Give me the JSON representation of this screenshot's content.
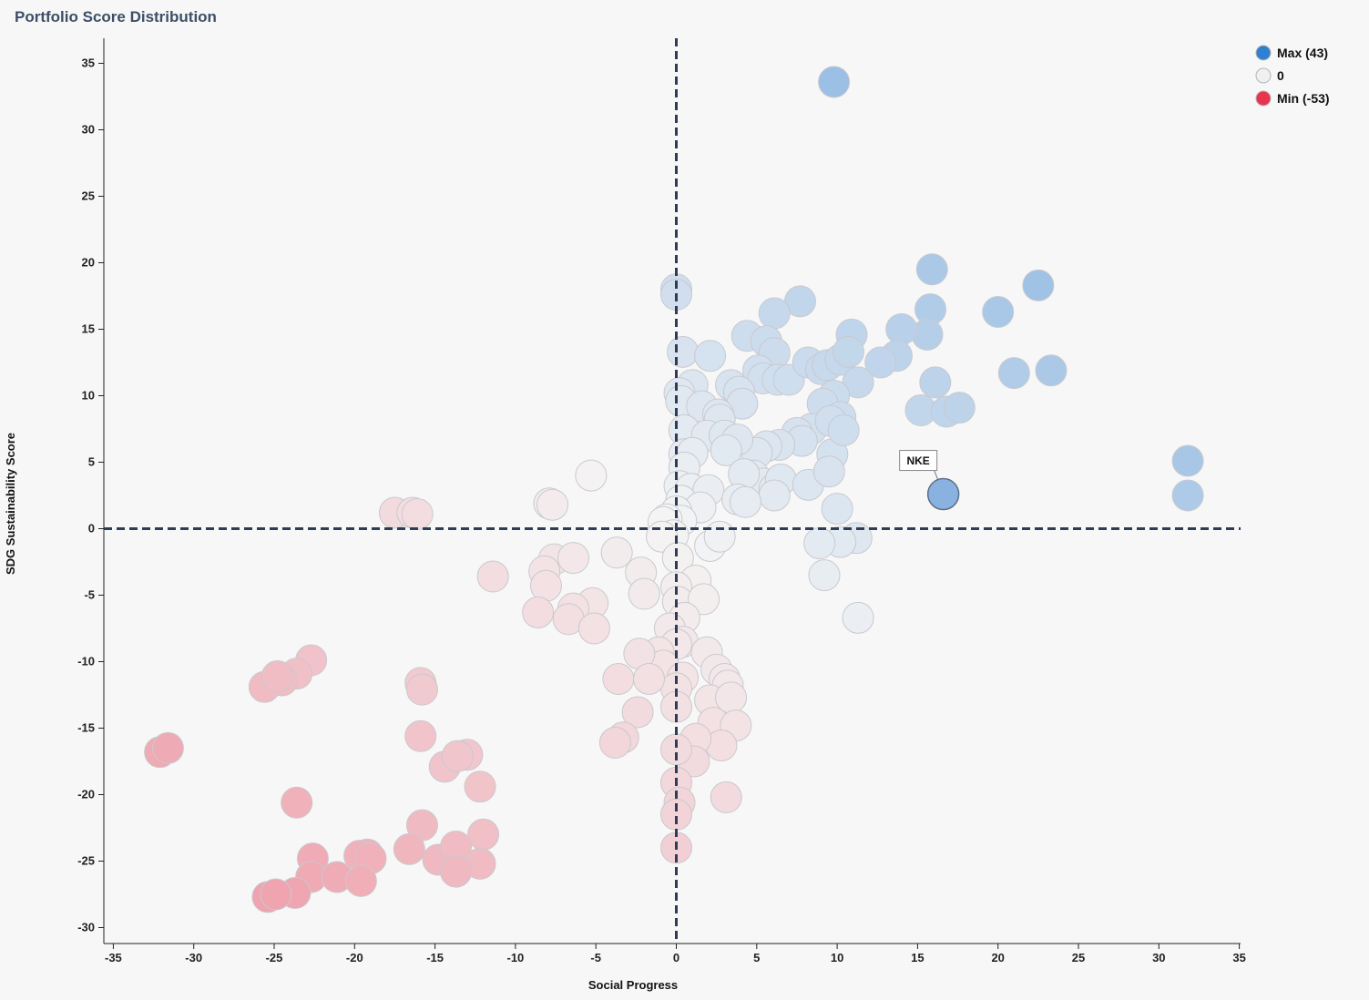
{
  "title": "Portfolio Score Distribution",
  "chart_data": {
    "type": "scatter",
    "title": "Portfolio Score Distribution",
    "xlabel": "Social Progress",
    "ylabel": "SDG Sustainability Score",
    "xlim": [
      -35.5,
      35.5
    ],
    "ylim": [
      -31,
      37
    ],
    "xticks": [
      -35,
      -30,
      -25,
      -20,
      -15,
      -10,
      -5,
      0,
      5,
      10,
      15,
      20,
      25,
      30,
      35
    ],
    "yticks": [
      -30,
      -25,
      -20,
      -15,
      -10,
      -5,
      0,
      5,
      10,
      15,
      20,
      25,
      30,
      35
    ],
    "reference_lines": {
      "x": 0,
      "y": 0,
      "style": "dashed"
    },
    "grid": false,
    "legend": {
      "position": "top-right",
      "items": [
        {
          "label": "Max (43)",
          "color": "#2f7fd2"
        },
        {
          "label": "0",
          "color": "#f0f0f0"
        },
        {
          "label": "Min (-53)",
          "color": "#e8344e"
        }
      ]
    },
    "color_scale": {
      "min": -53,
      "mid": 0,
      "max": 43,
      "min_color": "#e8344e",
      "mid_color": "#f4f4f4",
      "max_color": "#2f7fd2"
    },
    "highlight": {
      "label": "NKE",
      "x": 16.6,
      "y": 2.6,
      "color": "#8ab2e0"
    },
    "points": [
      [
        9.8,
        33.6
      ],
      [
        15.9,
        19.5
      ],
      [
        22.5,
        18.3
      ],
      [
        20.0,
        16.3
      ],
      [
        15.8,
        16.5
      ],
      [
        15.6,
        14.6
      ],
      [
        14.0,
        15.0
      ],
      [
        13.7,
        13.0
      ],
      [
        12.7,
        12.5
      ],
      [
        16.1,
        11.0
      ],
      [
        21.0,
        11.7
      ],
      [
        23.3,
        11.9
      ],
      [
        15.2,
        8.9
      ],
      [
        16.8,
        8.8
      ],
      [
        17.6,
        9.1
      ],
      [
        31.8,
        5.1
      ],
      [
        31.8,
        2.5
      ],
      [
        7.7,
        17.1
      ],
      [
        6.1,
        16.2
      ],
      [
        4.4,
        14.5
      ],
      [
        5.6,
        14.1
      ],
      [
        6.1,
        13.2
      ],
      [
        5.1,
        11.9
      ],
      [
        5.4,
        11.3
      ],
      [
        6.3,
        11.2
      ],
      [
        7.0,
        11.2
      ],
      [
        8.2,
        12.5
      ],
      [
        9.0,
        12.0
      ],
      [
        9.4,
        12.3
      ],
      [
        10.2,
        12.7
      ],
      [
        10.9,
        14.6
      ],
      [
        10.7,
        13.3
      ],
      [
        11.3,
        11.0
      ],
      [
        9.8,
        10.0
      ],
      [
        9.1,
        9.4
      ],
      [
        10.2,
        8.4
      ],
      [
        8.4,
        7.5
      ],
      [
        7.5,
        7.2
      ],
      [
        7.8,
        6.6
      ],
      [
        6.4,
        6.3
      ],
      [
        5.6,
        6.2
      ],
      [
        5.0,
        5.7
      ],
      [
        4.8,
        4.0
      ],
      [
        5.4,
        3.4
      ],
      [
        6.1,
        3.0
      ],
      [
        6.5,
        3.7
      ],
      [
        6.1,
        2.5
      ],
      [
        8.2,
        3.3
      ],
      [
        9.6,
        8.1
      ],
      [
        9.7,
        5.6
      ],
      [
        9.5,
        4.3
      ],
      [
        10.4,
        7.4
      ],
      [
        10.0,
        1.5
      ],
      [
        11.2,
        -0.7
      ],
      [
        10.2,
        -1.0
      ],
      [
        8.9,
        -1.1
      ],
      [
        9.2,
        -3.5
      ],
      [
        11.3,
        -6.7
      ],
      [
        0.0,
        18.0
      ],
      [
        0.0,
        17.6
      ],
      [
        0.4,
        13.3
      ],
      [
        2.1,
        13.0
      ],
      [
        1.0,
        10.8
      ],
      [
        3.4,
        10.8
      ],
      [
        3.9,
        10.3
      ],
      [
        4.1,
        9.4
      ],
      [
        0.2,
        10.2
      ],
      [
        0.3,
        9.6
      ],
      [
        1.6,
        9.2
      ],
      [
        2.6,
        8.6
      ],
      [
        2.7,
        8.2
      ],
      [
        0.5,
        7.4
      ],
      [
        1.9,
        7.0
      ],
      [
        3.0,
        7.0
      ],
      [
        3.8,
        6.7
      ],
      [
        0.5,
        5.6
      ],
      [
        1.0,
        5.7
      ],
      [
        3.1,
        5.9
      ],
      [
        4.2,
        4.1
      ],
      [
        0.5,
        4.6
      ],
      [
        0.2,
        3.2
      ],
      [
        0.9,
        3.0
      ],
      [
        2.0,
        2.9
      ],
      [
        3.8,
        2.2
      ],
      [
        4.3,
        2.0
      ],
      [
        0.3,
        2.1
      ],
      [
        1.5,
        1.6
      ],
      [
        0.0,
        1.3
      ],
      [
        0.3,
        0.6
      ],
      [
        -0.6,
        0.7
      ],
      [
        -0.8,
        0.5
      ],
      [
        -0.2,
        -0.5
      ],
      [
        -0.9,
        -0.6
      ],
      [
        0.1,
        -2.2
      ],
      [
        2.1,
        -1.3
      ],
      [
        2.7,
        -0.6
      ],
      [
        1.2,
        -3.9
      ],
      [
        0.0,
        -4.4
      ],
      [
        0.1,
        -5.5
      ],
      [
        1.7,
        -5.3
      ],
      [
        0.5,
        -6.7
      ],
      [
        -0.4,
        -7.5
      ],
      [
        0.4,
        -8.5
      ],
      [
        1.9,
        -9.3
      ],
      [
        0.0,
        -8.7
      ],
      [
        -1.1,
        -9.3
      ],
      [
        -0.8,
        -10.3
      ],
      [
        2.5,
        -10.6
      ],
      [
        3.0,
        -11.3
      ],
      [
        3.2,
        -11.8
      ],
      [
        0.4,
        -11.2
      ],
      [
        0.0,
        -12.0
      ],
      [
        0.0,
        -13.4
      ],
      [
        2.1,
        -12.9
      ],
      [
        3.4,
        -12.7
      ],
      [
        2.3,
        -14.6
      ],
      [
        3.7,
        -14.8
      ],
      [
        2.8,
        -16.3
      ],
      [
        1.2,
        -15.8
      ],
      [
        1.1,
        -17.5
      ],
      [
        0.0,
        -16.6
      ],
      [
        0.0,
        -19.1
      ],
      [
        0.2,
        -20.6
      ],
      [
        3.1,
        -20.2
      ],
      [
        0.0,
        -21.5
      ],
      [
        0.0,
        -24.0
      ],
      [
        -5.3,
        4.0
      ],
      [
        -7.9,
        1.9
      ],
      [
        -7.7,
        1.8
      ],
      [
        -17.5,
        1.2
      ],
      [
        -16.4,
        1.2
      ],
      [
        -16.1,
        1.1
      ],
      [
        -11.4,
        -3.6
      ],
      [
        -7.6,
        -2.3
      ],
      [
        -6.4,
        -2.2
      ],
      [
        -8.2,
        -3.2
      ],
      [
        -8.1,
        -4.3
      ],
      [
        -3.7,
        -1.8
      ],
      [
        -2.2,
        -3.3
      ],
      [
        -2.0,
        -4.9
      ],
      [
        -5.2,
        -5.6
      ],
      [
        -6.4,
        -6.0
      ],
      [
        -8.6,
        -6.3
      ],
      [
        -6.7,
        -6.8
      ],
      [
        -5.1,
        -7.5
      ],
      [
        -2.3,
        -9.4
      ],
      [
        -3.6,
        -11.3
      ],
      [
        -1.7,
        -11.3
      ],
      [
        -2.4,
        -13.8
      ],
      [
        -3.3,
        -15.7
      ],
      [
        -3.8,
        -16.1
      ],
      [
        -22.7,
        -9.9
      ],
      [
        -23.6,
        -10.9
      ],
      [
        -24.5,
        -11.4
      ],
      [
        -25.6,
        -11.9
      ],
      [
        -24.8,
        -11.1
      ],
      [
        -15.9,
        -11.6
      ],
      [
        -15.8,
        -12.1
      ],
      [
        -15.9,
        -15.6
      ],
      [
        -13.0,
        -17.0
      ],
      [
        -14.4,
        -17.9
      ],
      [
        -13.6,
        -17.1
      ],
      [
        -12.2,
        -19.4
      ],
      [
        -32.1,
        -16.8
      ],
      [
        -31.6,
        -16.5
      ],
      [
        -23.6,
        -20.6
      ],
      [
        -15.8,
        -22.3
      ],
      [
        -12.0,
        -23.0
      ],
      [
        -16.6,
        -24.1
      ],
      [
        -14.8,
        -24.9
      ],
      [
        -13.7,
        -23.9
      ],
      [
        -12.2,
        -25.2
      ],
      [
        -13.7,
        -25.8
      ],
      [
        -19.2,
        -24.5
      ],
      [
        -19.7,
        -24.6
      ],
      [
        -19.0,
        -24.8
      ],
      [
        -22.6,
        -24.8
      ],
      [
        -22.7,
        -26.2
      ],
      [
        -21.1,
        -26.2
      ],
      [
        -19.6,
        -26.5
      ],
      [
        -23.7,
        -27.4
      ],
      [
        -25.4,
        -27.7
      ],
      [
        -24.9,
        -27.5
      ]
    ]
  }
}
